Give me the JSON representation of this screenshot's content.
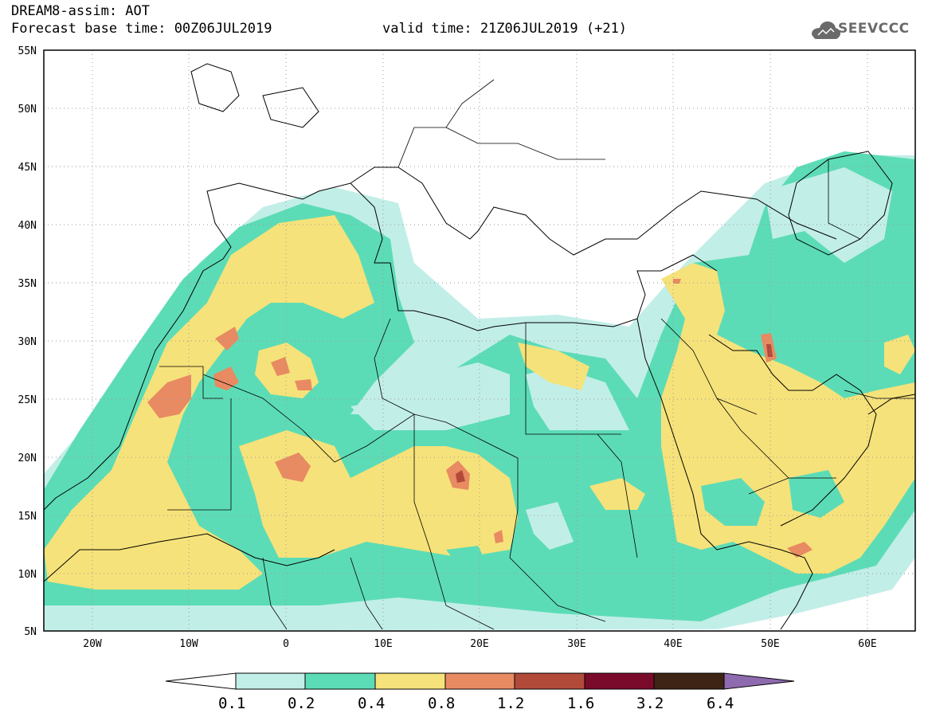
{
  "header": {
    "line1": "DREAM8-assim: AOT",
    "line2": "Forecast base time: 00Z06JUL2019",
    "valid": "valid time: 21Z06JUL2019 (+21)",
    "logo_text": "SEEVCCC"
  },
  "axes": {
    "lat_labels": [
      "55N",
      "50N",
      "45N",
      "40N",
      "35N",
      "30N",
      "25N",
      "20N",
      "15N",
      "10N",
      "5N"
    ],
    "lon_labels": [
      "20W",
      "10W",
      "0",
      "10E",
      "20E",
      "30E",
      "40E",
      "50E",
      "60E"
    ],
    "lat_range": [
      5,
      55
    ],
    "lon_range": [
      -25,
      65
    ]
  },
  "colorbar": {
    "labels": [
      "0.1",
      "0.2",
      "0.4",
      "0.8",
      "1.2",
      "1.6",
      "3.2",
      "6.4"
    ],
    "colors": [
      "#c2eee8",
      "#5cdcb6",
      "#f6e27a",
      "#e88a62",
      "#b24a3a",
      "#7a0a2a",
      "#3e2414",
      "#8e6aae"
    ]
  },
  "legend_icons": [
    "cloud-logo-icon"
  ]
}
